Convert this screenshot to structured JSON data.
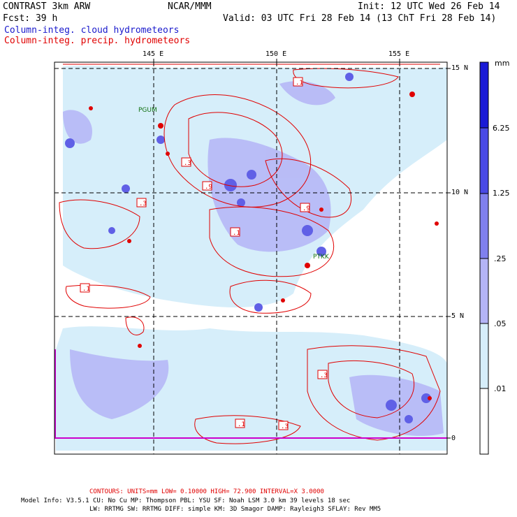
{
  "header": {
    "left1": "CONTRAST  3km ARW",
    "center1": "NCAR/MMM",
    "right1": "Init: 12 UTC Wed 26 Feb 14",
    "left2": "Fcst:   39 h",
    "right2": "Valid: 03 UTC Fri 28 Feb 14 (13 ChT Fri 28 Feb 14)",
    "line3": "Column-integ. cloud hydrometeors",
    "line4": "Column-integ. precip. hydrometeors"
  },
  "axes": {
    "lon_labels": [
      "145 E",
      "150 E",
      "155 E"
    ],
    "lat_labels": [
      "15 N",
      "10 N",
      "5 N",
      "0"
    ]
  },
  "colorbar": {
    "unit": "mm",
    "levels": [
      "6.25",
      "1.25",
      ".25",
      ".05",
      ".01"
    ],
    "colors": [
      "#1a1ad6",
      "#4a4ae6",
      "#8080ee",
      "#b4b4f6",
      "#d6eefa",
      "#ffffff"
    ]
  },
  "stations": [
    "PGUM",
    "PTKK"
  ],
  "contour_labels": [
    ".1",
    ".3",
    ".9",
    ".1",
    ".3",
    ".9",
    ".1",
    ".3",
    ".1",
    ".3"
  ],
  "footer": {
    "contours": "CONTOURS:  UNITS=mm  LOW= 0.10000     HIGH=  72.900     INTERVAL=X  3.0000",
    "model1": "Model Info: V3.5.1    CU: No Cu     MP: Thompson    PBL: YSU      SF: Noah LSM    3.0 km   39 levels    18 sec",
    "model2": "LW: RRTMG   SW: RRTMG  DIFF: simple KM: 3D Smagor DAMP: Rayleigh3  SFLAY: Rev MM5"
  }
}
